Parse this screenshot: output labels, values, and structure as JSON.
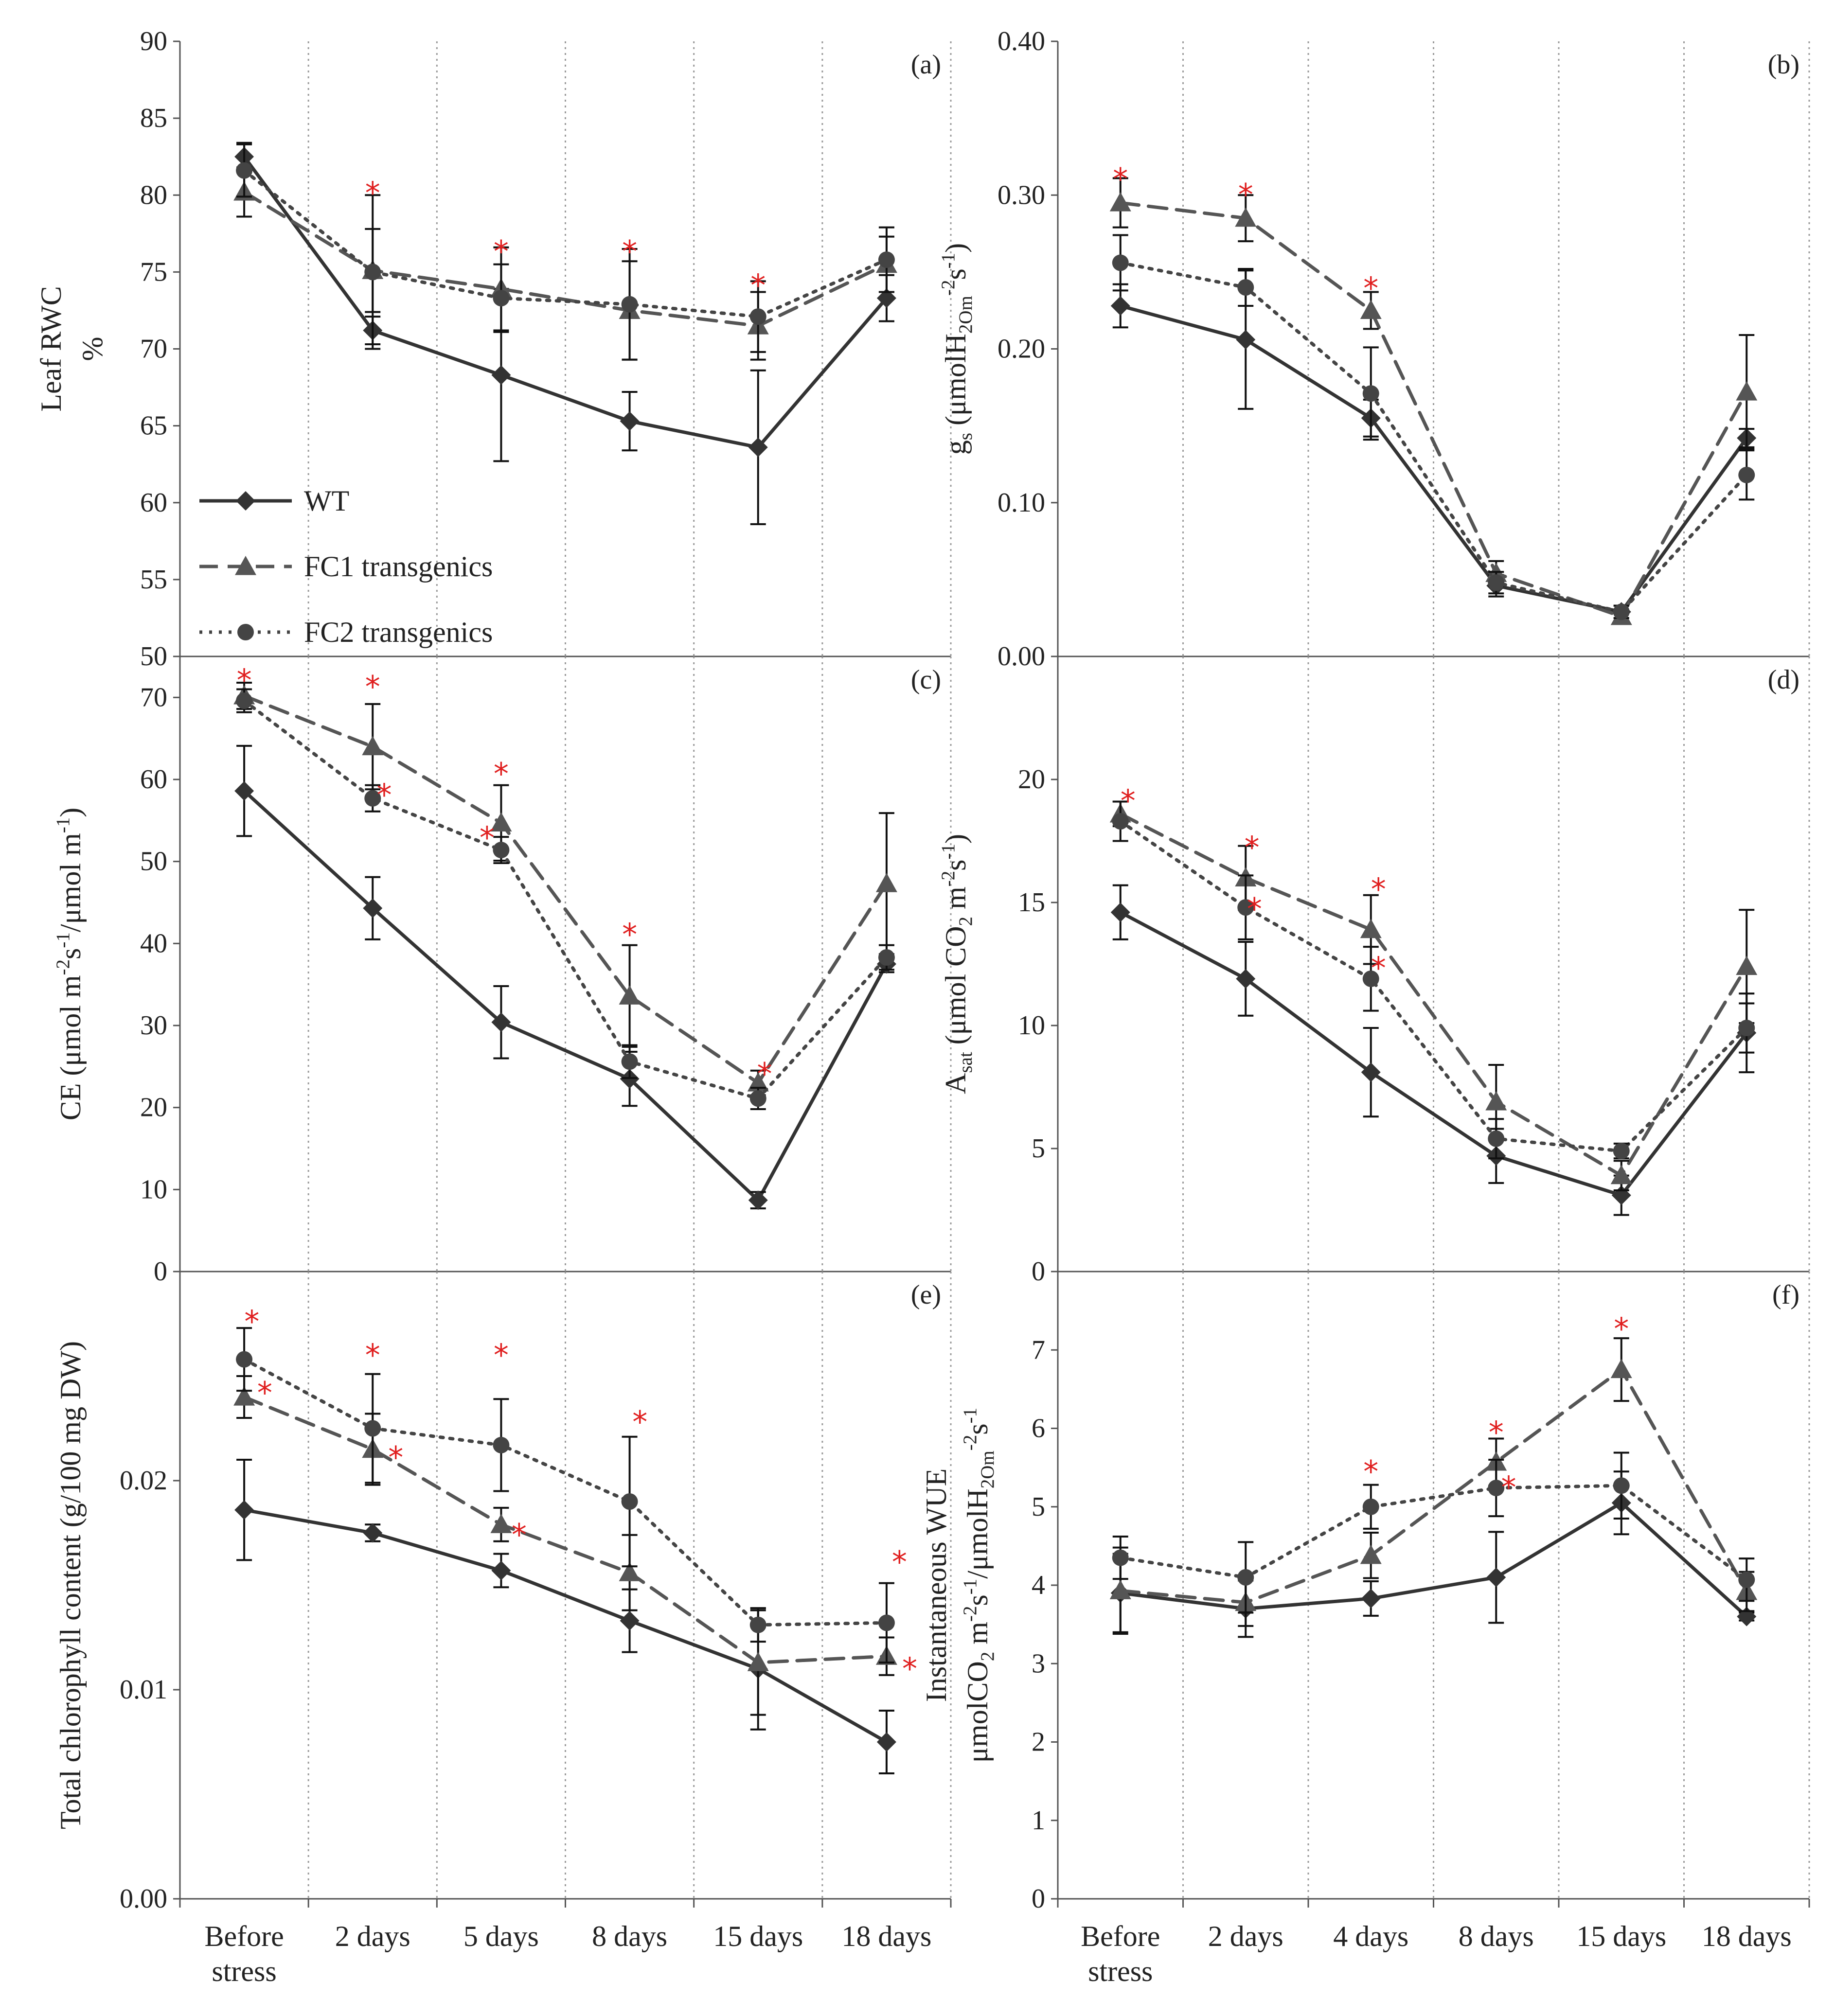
{
  "figure": {
    "x_categories": [
      [
        "Before",
        "stress"
      ],
      [
        "2 days"
      ],
      [
        "5 days"
      ],
      [
        "8 days"
      ],
      [
        "15 days"
      ],
      [
        "18 days"
      ]
    ],
    "x_categories_right": [
      [
        "Before",
        "stress"
      ],
      [
        "2 days"
      ],
      [
        "4 days"
      ],
      [
        "8 days"
      ],
      [
        "15 days"
      ],
      [
        "18 days"
      ]
    ],
    "legend": [
      "WT",
      "FC1 transgenics",
      "FC2 transgenics"
    ],
    "colors": {
      "WT": "#333333",
      "FC1": "#555555",
      "FC2": "#444444",
      "star": "#e02020",
      "grid": "#9a9a9a"
    }
  },
  "chart_data": [
    {
      "id": "a",
      "letter": "(a)",
      "type": "line",
      "ylabel": [
        "Leaf RWC",
        "%"
      ],
      "ylim": [
        50,
        90
      ],
      "yticks": [
        50,
        55,
        60,
        65,
        70,
        75,
        80,
        85,
        90
      ],
      "ytick_labels": [
        "50",
        "55",
        "60",
        "65",
        "70",
        "75",
        "80",
        "85",
        "90"
      ],
      "categories": [
        "Before stress",
        "2 days",
        "5 days",
        "8 days",
        "15 days",
        "18 days"
      ],
      "series": [
        {
          "name": "WT",
          "marker": "diamond",
          "dash": "solid",
          "values": [
            82.5,
            71.2,
            68.3,
            65.3,
            63.6,
            73.3
          ],
          "err": [
            0.9,
            0.9,
            5.6,
            1.9,
            5.0,
            1.5
          ]
        },
        {
          "name": "FC1 transgenics",
          "marker": "triangle",
          "dash": "dashed",
          "values": [
            80.2,
            75.1,
            73.9,
            72.5,
            71.5,
            75.5
          ],
          "err": [
            1.6,
            2.7,
            2.7,
            3.2,
            2.2,
            1.8
          ]
        },
        {
          "name": "FC2 transgenics",
          "marker": "circle",
          "dash": "dotted",
          "values": [
            81.6,
            75.0,
            73.3,
            72.9,
            72.1,
            75.8
          ],
          "err": [
            1.7,
            5.0,
            2.2,
            3.6,
            2.3,
            2.1
          ]
        }
      ],
      "stars": [
        [
          1,
          80.4,
          0
        ],
        [
          2,
          76.6,
          0
        ],
        [
          3,
          76.6,
          0
        ],
        [
          4,
          74.4,
          0
        ]
      ]
    },
    {
      "id": "b",
      "letter": "(b)",
      "type": "line",
      "ylabel": [
        "g_s (μmolH_2Om^-2s^-1)"
      ],
      "ylim": [
        0.0,
        0.4
      ],
      "yticks": [
        0.0,
        0.1,
        0.2,
        0.3,
        0.4
      ],
      "ytick_labels": [
        "0.00",
        "0.10",
        "0.20",
        "0.30",
        "0.40"
      ],
      "categories": [
        "Before stress",
        "2 days",
        "4 days",
        "8 days",
        "15 days",
        "18 days"
      ],
      "series": [
        {
          "name": "WT",
          "marker": "diamond",
          "dash": "solid",
          "values": [
            0.228,
            0.206,
            0.155,
            0.046,
            0.029,
            0.142
          ],
          "err": [
            0.014,
            0.045,
            0.012,
            0.007,
            0.004,
            0.006
          ]
        },
        {
          "name": "FC1 transgenics",
          "marker": "triangle",
          "dash": "dashed",
          "values": [
            0.295,
            0.285,
            0.225,
            0.054,
            0.026,
            0.172
          ],
          "err": [
            0.016,
            0.015,
            0.012,
            0.008,
            0.004,
            0.037
          ]
        },
        {
          "name": "FC2 transgenics",
          "marker": "circle",
          "dash": "dotted",
          "values": [
            0.256,
            0.24,
            0.171,
            0.048,
            0.029,
            0.118
          ],
          "err": [
            0.018,
            0.012,
            0.03,
            0.007,
            0.004,
            0.016
          ]
        }
      ],
      "stars": [
        [
          0,
          0.313,
          0
        ],
        [
          1,
          0.303,
          0
        ],
        [
          2,
          0.242,
          0
        ]
      ]
    },
    {
      "id": "c",
      "letter": "(c)",
      "type": "line",
      "ylabel": [
        "CE (μmol m^-2s^-1/μmol m^-1)"
      ],
      "ylim": [
        0,
        75
      ],
      "yticks": [
        0,
        10,
        20,
        30,
        40,
        50,
        60,
        70
      ],
      "ytick_labels": [
        "0",
        "10",
        "20",
        "30",
        "40",
        "50",
        "60",
        "70"
      ],
      "categories": [
        "Before stress",
        "2 days",
        "5 days",
        "8 days",
        "15 days",
        "18 days"
      ],
      "series": [
        {
          "name": "WT",
          "marker": "diamond",
          "dash": "solid",
          "values": [
            58.6,
            44.3,
            30.4,
            23.5,
            8.7,
            37.5
          ],
          "err": [
            5.5,
            3.8,
            4.4,
            3.3,
            1.0,
            1.0
          ]
        },
        {
          "name": "FC1 transgenics",
          "marker": "triangle",
          "dash": "dashed",
          "values": [
            70.2,
            64.0,
            54.7,
            33.6,
            23.0,
            47.3
          ],
          "err": [
            1.6,
            5.2,
            4.6,
            6.2,
            1.5,
            8.6
          ]
        },
        {
          "name": "FC2 transgenics",
          "marker": "circle",
          "dash": "dotted",
          "values": [
            69.6,
            57.7,
            51.4,
            25.6,
            21.1,
            38.3
          ],
          "err": [
            1.4,
            1.6,
            1.6,
            2.0,
            1.3,
            1.5
          ]
        }
      ],
      "stars": [
        [
          0,
          72.6,
          0
        ],
        [
          1,
          71.8,
          0
        ],
        [
          1,
          58.6,
          0.09
        ],
        [
          2,
          61.2,
          0
        ],
        [
          2,
          53.4,
          -0.11
        ],
        [
          3,
          41.6,
          0
        ],
        [
          4,
          24.6,
          0.05
        ]
      ]
    },
    {
      "id": "d",
      "letter": "(d)",
      "type": "line",
      "ylabel": [
        "A_sat (μmol CO_2 m^-2s^-1)"
      ],
      "ylim": [
        0,
        25
      ],
      "yticks": [
        0,
        5,
        10,
        15,
        20
      ],
      "ytick_labels": [
        "0",
        "5",
        "10",
        "15",
        "20"
      ],
      "categories": [
        "Before stress",
        "2 days",
        "4 days",
        "8 days",
        "15 days",
        "18 days"
      ],
      "series": [
        {
          "name": "WT",
          "marker": "diamond",
          "dash": "solid",
          "values": [
            14.6,
            11.9,
            8.1,
            4.7,
            3.1,
            9.7
          ],
          "err": [
            1.1,
            1.5,
            1.8,
            1.1,
            0.8,
            1.6
          ]
        },
        {
          "name": "FC1 transgenics",
          "marker": "triangle",
          "dash": "dashed",
          "values": [
            18.6,
            16.0,
            13.9,
            6.9,
            3.9,
            12.4
          ],
          "err": [
            0.5,
            1.3,
            1.4,
            1.5,
            0.6,
            2.3
          ]
        },
        {
          "name": "FC2 transgenics",
          "marker": "circle",
          "dash": "dotted",
          "values": [
            18.3,
            14.8,
            11.9,
            5.4,
            4.9,
            9.9
          ],
          "err": [
            0.8,
            1.3,
            1.3,
            0.8,
            0.3,
            1.0
          ]
        }
      ],
      "stars": [
        [
          0,
          19.3,
          0.06
        ],
        [
          1,
          17.4,
          0.05
        ],
        [
          1,
          14.9,
          0.07
        ],
        [
          2,
          15.7,
          0.06
        ],
        [
          2,
          12.5,
          0.06
        ]
      ]
    },
    {
      "id": "e",
      "letter": "(e)",
      "type": "line",
      "ylabel": [
        "Total chlorophyll content (g/100 mg DW)"
      ],
      "ylim": [
        0.0,
        0.03
      ],
      "yticks": [
        0.0,
        0.01,
        0.02
      ],
      "ytick_labels": [
        "0.00",
        "0.01",
        "0.02"
      ],
      "categories": [
        "Before stress",
        "2 days",
        "5 days",
        "8 days",
        "15 days",
        "18 days"
      ],
      "series": [
        {
          "name": "WT",
          "marker": "diamond",
          "dash": "solid",
          "values": [
            0.0186,
            0.0175,
            0.0157,
            0.0133,
            0.011,
            0.0075
          ],
          "err": [
            0.0024,
            0.0004,
            0.0008,
            0.0015,
            0.0029,
            0.0015
          ]
        },
        {
          "name": "FC1 transgenics",
          "marker": "triangle",
          "dash": "dashed",
          "values": [
            0.024,
            0.0215,
            0.0179,
            0.0156,
            0.0113,
            0.0116
          ],
          "err": [
            0.001,
            0.0017,
            0.0008,
            0.0018,
            0.0025,
            0.0009
          ]
        },
        {
          "name": "FC2 transgenics",
          "marker": "circle",
          "dash": "dotted",
          "values": [
            0.0258,
            0.0225,
            0.0217,
            0.019,
            0.0131,
            0.0132
          ],
          "err": [
            0.0015,
            0.0026,
            0.0022,
            0.0031,
            0.0008,
            0.0019
          ]
        }
      ],
      "stars": [
        [
          0,
          0.0278,
          0.06
        ],
        [
          0,
          0.0244,
          0.16
        ],
        [
          1,
          0.0262,
          0
        ],
        [
          1,
          0.0213,
          0.18
        ],
        [
          2,
          0.0262,
          0
        ],
        [
          2,
          0.0176,
          0.14
        ],
        [
          3,
          0.023,
          0.08
        ],
        [
          5,
          0.0163,
          0.1
        ],
        [
          5,
          0.0112,
          0.18
        ]
      ]
    },
    {
      "id": "f",
      "letter": "(f)",
      "type": "line",
      "ylabel": [
        "Instantaneous WUE",
        "μmolCO_2 m^-2s^-1/μmolH_2Om^-2s^-1"
      ],
      "ylim": [
        0,
        8
      ],
      "yticks": [
        0,
        1,
        2,
        3,
        4,
        5,
        6,
        7
      ],
      "ytick_labels": [
        "0",
        "1",
        "2",
        "3",
        "4",
        "5",
        "6",
        "7"
      ],
      "categories": [
        "Before stress",
        "2 days",
        "4 days",
        "8 days",
        "15 days",
        "18 days"
      ],
      "series": [
        {
          "name": "WT",
          "marker": "diamond",
          "dash": "solid",
          "values": [
            3.9,
            3.7,
            3.83,
            4.1,
            5.05,
            3.6
          ],
          "err": [
            0.5,
            0.36,
            0.22,
            0.58,
            0.4,
            0.05
          ]
        },
        {
          "name": "FC1 transgenics",
          "marker": "triangle",
          "dash": "dashed",
          "values": [
            3.93,
            3.78,
            4.38,
            5.57,
            6.75,
            3.92
          ],
          "err": [
            0.55,
            0.3,
            0.29,
            0.3,
            0.4,
            0.25
          ]
        },
        {
          "name": "FC2 transgenics",
          "marker": "circle",
          "dash": "dotted",
          "values": [
            4.35,
            4.1,
            5.0,
            5.24,
            5.27,
            4.07
          ],
          "err": [
            0.27,
            0.45,
            0.28,
            0.36,
            0.42,
            0.27
          ]
        }
      ],
      "stars": [
        [
          2,
          5.5,
          0
        ],
        [
          3,
          6.0,
          0
        ],
        [
          3,
          5.3,
          0.1
        ],
        [
          4,
          7.32,
          0
        ]
      ]
    }
  ]
}
